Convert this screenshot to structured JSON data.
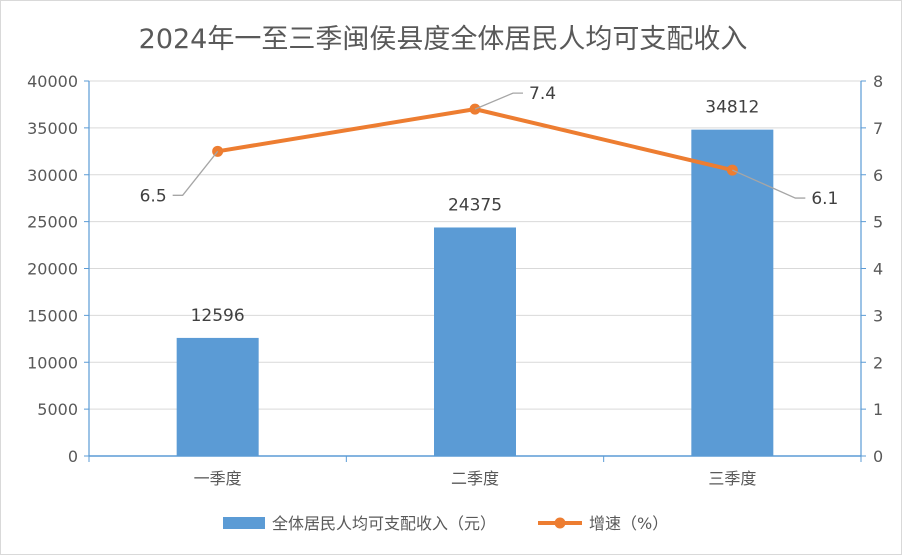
{
  "chart_data": {
    "type": "bar",
    "title": "2024年一至三季闽侯县度全体居民人均可支配收入",
    "categories": [
      "一季度",
      "二季度",
      "三季度"
    ],
    "series": [
      {
        "name": "全体居民人均可支配收入（元）",
        "type": "bar",
        "axis": "left",
        "values": [
          12596,
          24375,
          34812
        ],
        "color": "#5B9BD5"
      },
      {
        "name": "增速（%）",
        "type": "line",
        "axis": "right",
        "values": [
          6.5,
          7.4,
          6.1
        ],
        "color": "#ED7D31"
      }
    ],
    "y_left": {
      "min": 0,
      "max": 40000,
      "step": 5000
    },
    "y_right": {
      "min": 0,
      "max": 8,
      "step": 1
    },
    "grid": true,
    "legend_position": "bottom",
    "axis_color": "#5B9BD5",
    "grid_color": "#d9d9d9",
    "leader_color": "#a6a6a6"
  }
}
